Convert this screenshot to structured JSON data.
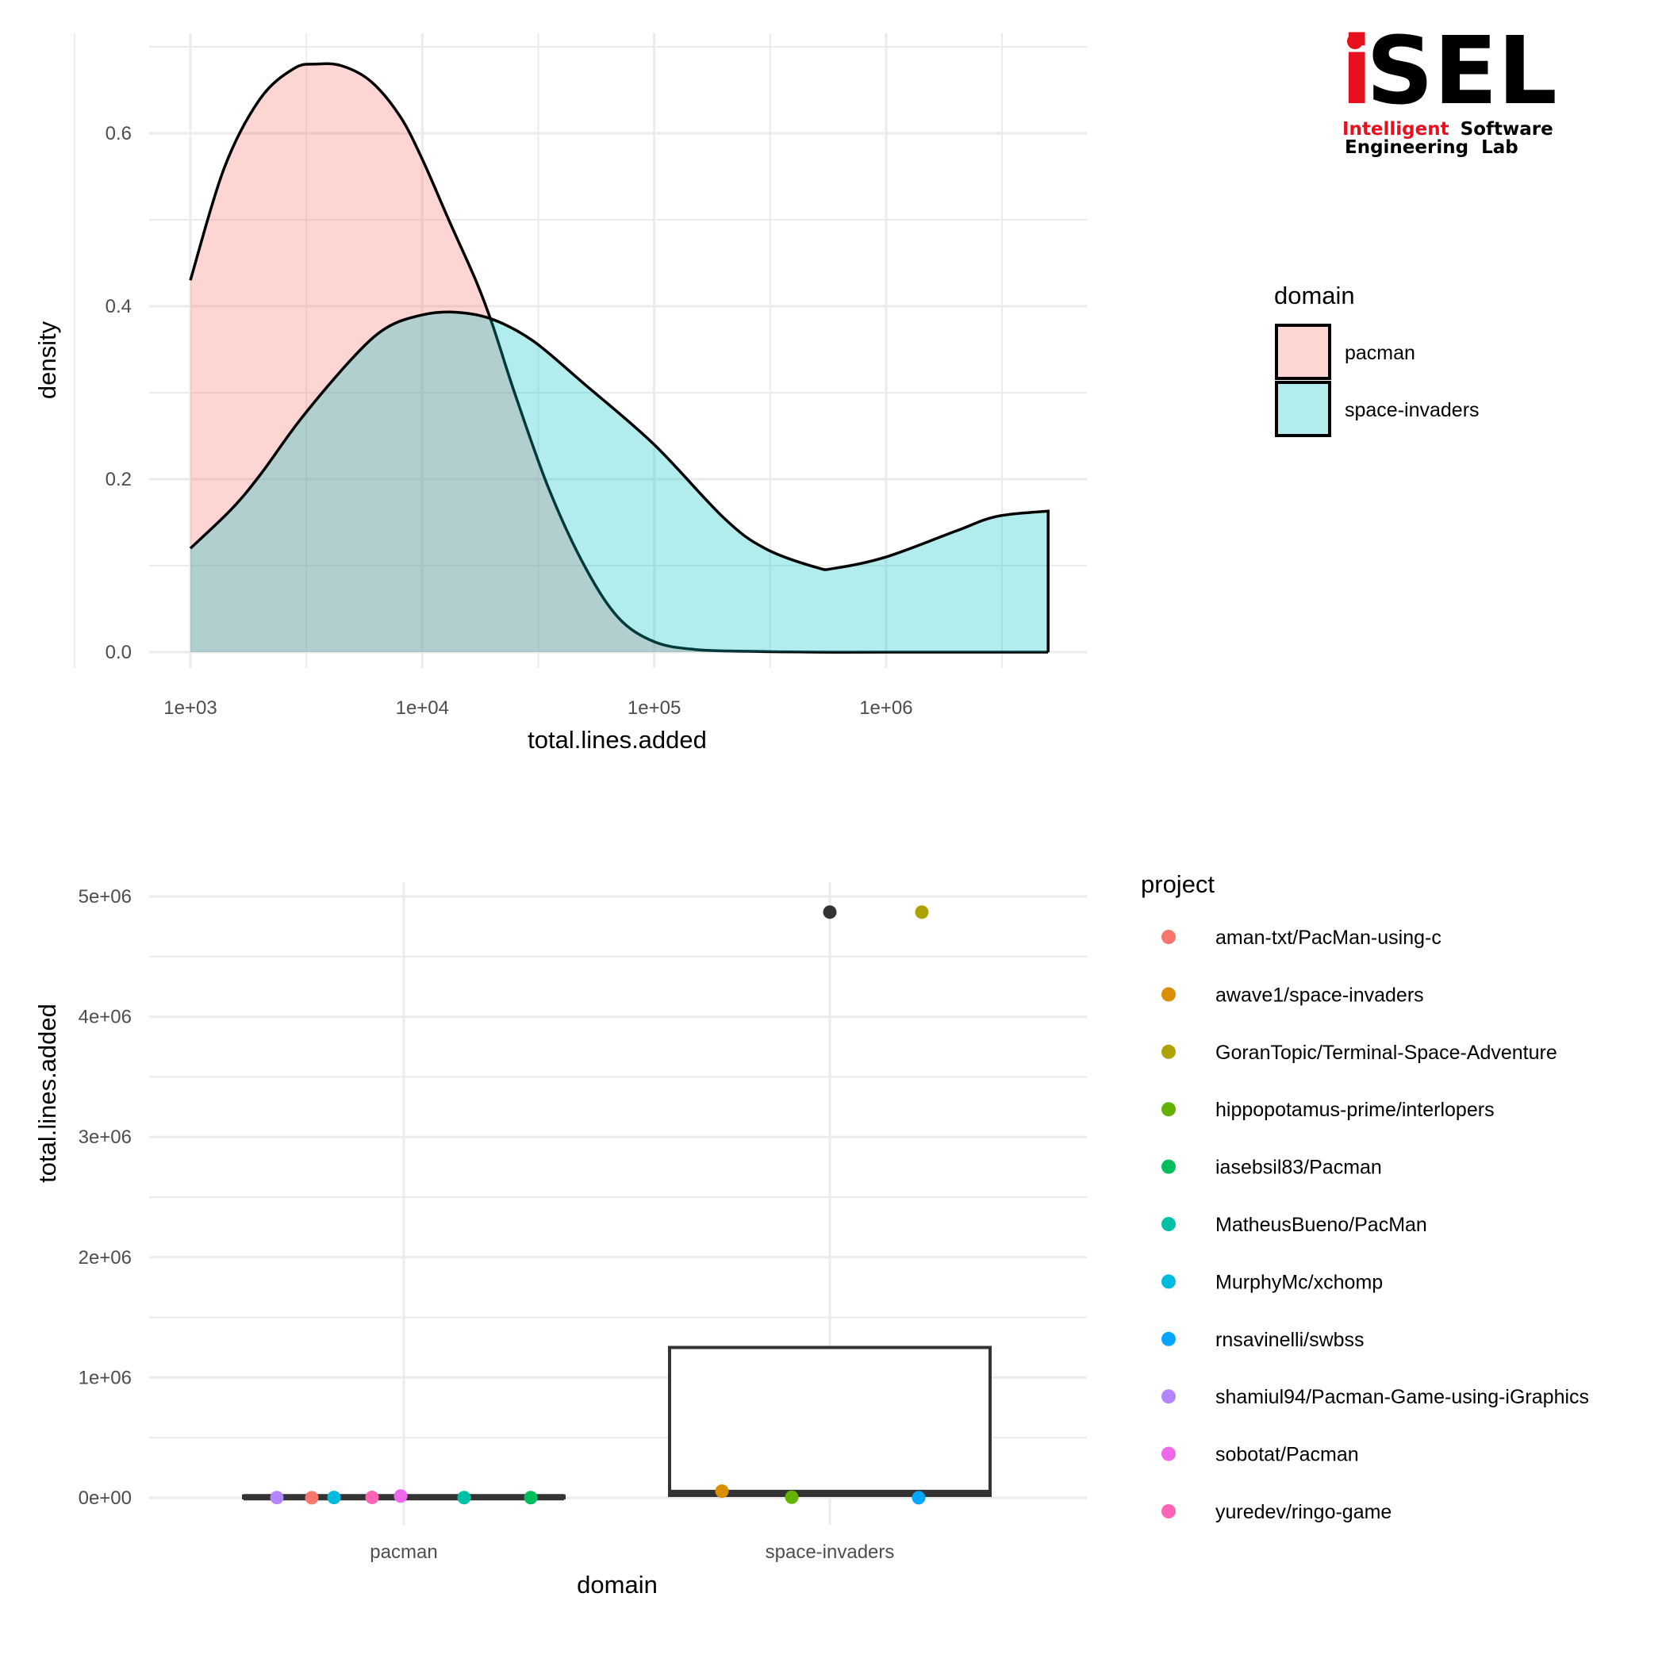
{
  "logo": {
    "letter_i": "i",
    "letters_rest": "SEL",
    "line1_red": "Intelligent",
    "line1_black": "Software",
    "line2": "Engineering  Lab",
    "colors": {
      "red": "#e8101e",
      "black": "#000000"
    }
  },
  "chart_data": [
    {
      "type": "density",
      "xlabel": "total.lines.added",
      "ylabel": "density",
      "x_scale": "log10",
      "xlim": [
        1000,
        5000000
      ],
      "ylim": [
        0,
        0.7
      ],
      "x_ticks": [
        {
          "value": 1000,
          "label": "1e+03"
        },
        {
          "value": 10000,
          "label": "1e+04"
        },
        {
          "value": 100000,
          "label": "1e+05"
        },
        {
          "value": 1000000,
          "label": "1e+06"
        }
      ],
      "y_ticks": [
        {
          "value": 0.0,
          "label": "0.0"
        },
        {
          "value": 0.2,
          "label": "0.2"
        },
        {
          "value": 0.4,
          "label": "0.4"
        },
        {
          "value": 0.6,
          "label": "0.6"
        }
      ],
      "grid": true,
      "legend": {
        "title": "domain",
        "placement": "right",
        "entries": [
          {
            "label": "pacman",
            "color": "#f8766d"
          },
          {
            "label": "space-invaders",
            "color": "#00bfc4"
          }
        ]
      },
      "series": [
        {
          "name": "pacman",
          "color": "#f8766d",
          "x": [
            1000,
            1400,
            2000,
            2800,
            3500,
            4500,
            6000,
            8000,
            10000,
            13000,
            17000,
            20000,
            25000,
            35000,
            50000,
            70000,
            100000,
            150000,
            250000,
            500000,
            1000000,
            5000000
          ],
          "y": [
            0.43,
            0.56,
            0.64,
            0.675,
            0.68,
            0.678,
            0.66,
            0.62,
            0.57,
            0.5,
            0.43,
            0.38,
            0.3,
            0.19,
            0.1,
            0.04,
            0.012,
            0.003,
            0.001,
            0.0,
            0.0,
            0.0
          ]
        },
        {
          "name": "space-invaders",
          "color": "#00bfc4",
          "x": [
            1000,
            1500,
            2000,
            3000,
            5000,
            7000,
            10000,
            14000,
            20000,
            30000,
            50000,
            100000,
            200000,
            300000,
            500000,
            600000,
            1000000,
            2000000,
            3000000,
            5000000
          ],
          "y": [
            0.12,
            0.165,
            0.205,
            0.27,
            0.34,
            0.375,
            0.39,
            0.393,
            0.385,
            0.36,
            0.31,
            0.24,
            0.155,
            0.12,
            0.098,
            0.097,
            0.11,
            0.14,
            0.157,
            0.163
          ]
        }
      ]
    },
    {
      "type": "boxplot",
      "xlabel": "domain",
      "ylabel": "total.lines.added",
      "categories": [
        "pacman",
        "space-invaders"
      ],
      "ylim": [
        -250000,
        5100000
      ],
      "y_ticks": [
        {
          "value": 0,
          "label": "0e+00"
        },
        {
          "value": 1000000,
          "label": "1e+06"
        },
        {
          "value": 2000000,
          "label": "2e+06"
        },
        {
          "value": 3000000,
          "label": "3e+06"
        },
        {
          "value": 4000000,
          "label": "4e+06"
        },
        {
          "value": 5000000,
          "label": "5e+06"
        }
      ],
      "grid": true,
      "boxes": [
        {
          "category": "pacman",
          "q1": 0,
          "median": 5000,
          "q3": 15000,
          "whisker_low": 0,
          "whisker_high": 15000,
          "outliers": []
        },
        {
          "category": "space-invaders",
          "q1": 20000,
          "median": 40000,
          "q3": 1250000,
          "whisker_low": 20000,
          "whisker_high": 1250000,
          "outliers": [
            4870000
          ]
        }
      ],
      "legend": {
        "title": "project",
        "placement": "right",
        "entries": [
          {
            "label": "aman-txt/PacMan-using-c",
            "color": "#f8766d"
          },
          {
            "label": "awave1/space-invaders",
            "color": "#db8e00"
          },
          {
            "label": "GoranTopic/Terminal-Space-Adventure",
            "color": "#aea200"
          },
          {
            "label": "hippopotamus-prime/interlopers",
            "color": "#64b200"
          },
          {
            "label": "iasebsil83/Pacman",
            "color": "#00bd5c"
          },
          {
            "label": "MatheusBueno/PacMan",
            "color": "#00c1a7"
          },
          {
            "label": "MurphyMc/xchomp",
            "color": "#00badf"
          },
          {
            "label": "rnsavinelli/swbss",
            "color": "#00a6ff"
          },
          {
            "label": "shamiul94/Pacman-Game-using-iGraphics",
            "color": "#b385ff"
          },
          {
            "label": "sobotat/Pacman",
            "color": "#ef67eb"
          },
          {
            "label": "yuredev/ringo-game",
            "color": "#ff63b6"
          }
        ]
      },
      "points": [
        {
          "project": "shamiul94/Pacman-Game-using-iGraphics",
          "category": "pacman",
          "jitter": -0.4,
          "value": 2000,
          "color": "#b385ff"
        },
        {
          "project": "aman-txt/PacMan-using-c",
          "category": "pacman",
          "jitter": -0.29,
          "value": 1000,
          "color": "#f8766d"
        },
        {
          "project": "MurphyMc/xchomp",
          "category": "pacman",
          "jitter": -0.22,
          "value": 2500,
          "color": "#00badf"
        },
        {
          "project": "yuredev/ringo-game",
          "category": "pacman",
          "jitter": -0.1,
          "value": 3000,
          "color": "#ff63b6"
        },
        {
          "project": "sobotat/Pacman",
          "category": "pacman",
          "jitter": -0.01,
          "value": 15000,
          "color": "#ef67eb"
        },
        {
          "project": "MatheusBueno/PacMan",
          "category": "pacman",
          "jitter": 0.19,
          "value": 1500,
          "color": "#00c1a7"
        },
        {
          "project": "iasebsil83/Pacman",
          "category": "pacman",
          "jitter": 0.4,
          "value": 1500,
          "color": "#00bd5c"
        },
        {
          "project": "awave1/space-invaders",
          "category": "space-invaders",
          "jitter": -0.34,
          "value": 55000,
          "color": "#db8e00"
        },
        {
          "project": "hippopotamus-prime/interlopers",
          "category": "space-invaders",
          "jitter": -0.12,
          "value": 5000,
          "color": "#64b200"
        },
        {
          "project": "GoranTopic/Terminal-Space-Adventure",
          "category": "space-invaders",
          "jitter": 0.29,
          "value": 4870000,
          "color": "#aea200"
        },
        {
          "project": "rnsavinelli/swbss",
          "category": "space-invaders",
          "jitter": 0.28,
          "value": 1000,
          "color": "#00a6ff"
        }
      ]
    }
  ]
}
